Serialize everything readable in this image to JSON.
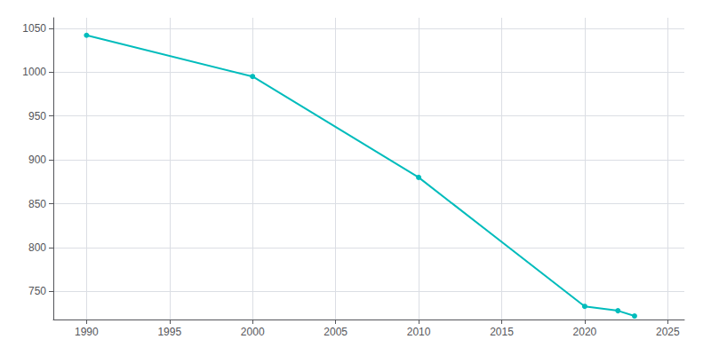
{
  "chart_data": {
    "type": "line",
    "x": [
      1990,
      2000,
      2010,
      2020,
      2022,
      2023
    ],
    "values": [
      1042,
      995,
      880,
      733,
      728,
      722
    ],
    "color": "#00BCBC",
    "marker": "circle",
    "xlim": [
      1988,
      2026
    ],
    "ylim": [
      718,
      1062
    ],
    "xticks": [
      1990,
      1995,
      2000,
      2005,
      2010,
      2015,
      2020,
      2025
    ],
    "yticks": [
      750,
      800,
      850,
      900,
      950,
      1000,
      1050
    ],
    "grid": true
  }
}
